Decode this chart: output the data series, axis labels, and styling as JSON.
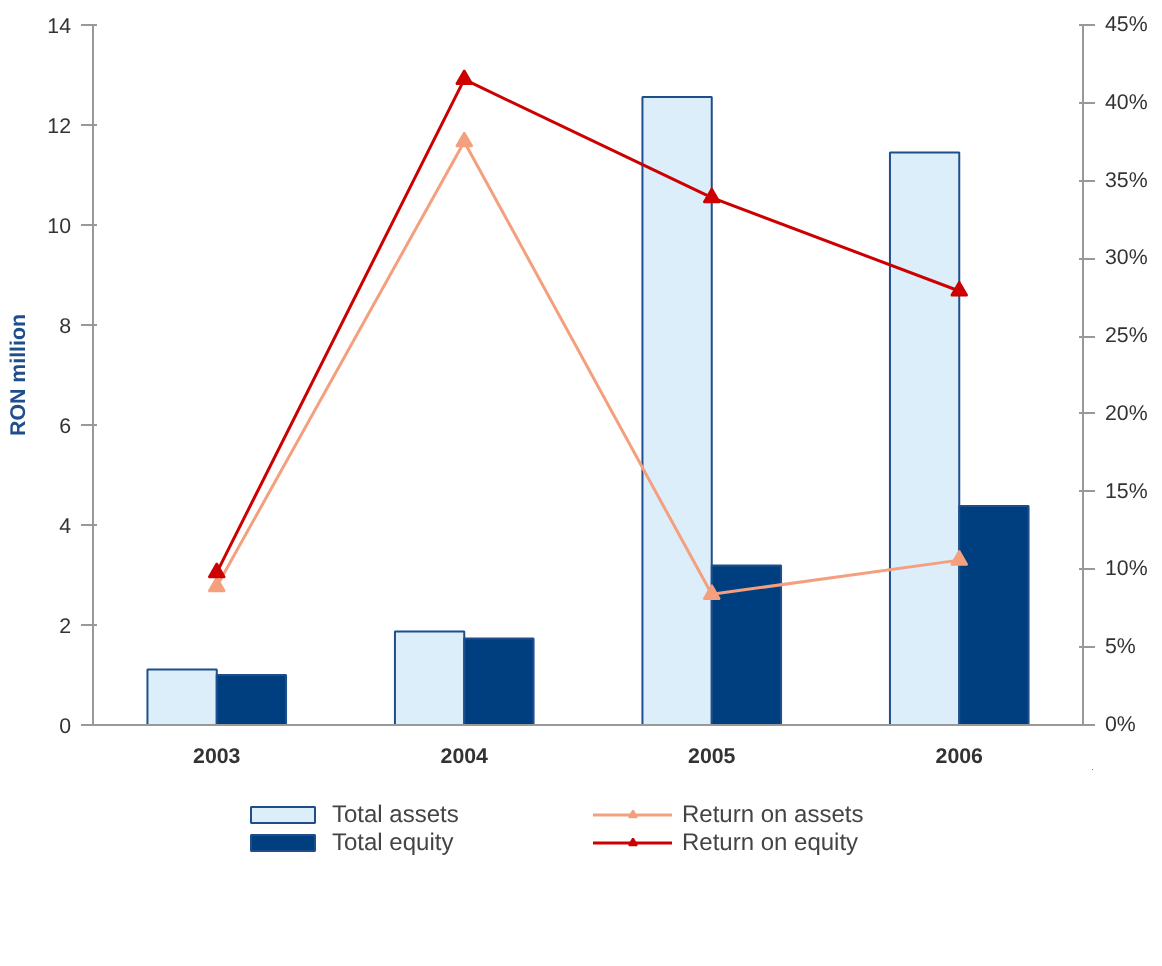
{
  "chart_data": {
    "type": "bar",
    "ylabel": "RON million",
    "categories": [
      "2003",
      "2004",
      "2005",
      "2006"
    ],
    "series": [
      {
        "name": "Total assets",
        "color": "#dceefa",
        "values": [
          1.11,
          1.87,
          12.56,
          11.45
        ]
      },
      {
        "name": "Total equity",
        "color": "#003f7f",
        "values": [
          1.0,
          1.73,
          3.19,
          4.38
        ]
      },
      {
        "name": "Return on assets",
        "type": "line",
        "axis": "y2",
        "color": "#f4a07f",
        "values": [
          8.9,
          37.5,
          8.4,
          10.6
        ]
      },
      {
        "name": "Return on equity",
        "type": "line",
        "axis": "y2",
        "color": "#cc0000",
        "values": [
          9.8,
          41.5,
          33.9,
          27.9
        ]
      }
    ],
    "ylim": [
      0,
      14
    ],
    "yticks": [
      0,
      2,
      4,
      6,
      8,
      10,
      12,
      14
    ],
    "y2lim": [
      0,
      45
    ],
    "y2ticks": [
      {
        "value": 0,
        "label": "0%"
      },
      {
        "value": 5,
        "label": "5%"
      },
      {
        "value": 10,
        "label": "10%"
      },
      {
        "value": 15,
        "label": "15%"
      },
      {
        "value": 20,
        "label": "20%"
      },
      {
        "value": 25,
        "label": "25%"
      },
      {
        "value": 30,
        "label": "30%"
      },
      {
        "value": 35,
        "label": "35%"
      },
      {
        "value": 40,
        "label": "40%"
      },
      {
        "value": 45,
        "label": "45%"
      }
    ],
    "marker": "triangle",
    "line_style": "solid",
    "grid": false,
    "legend": "bottom"
  }
}
